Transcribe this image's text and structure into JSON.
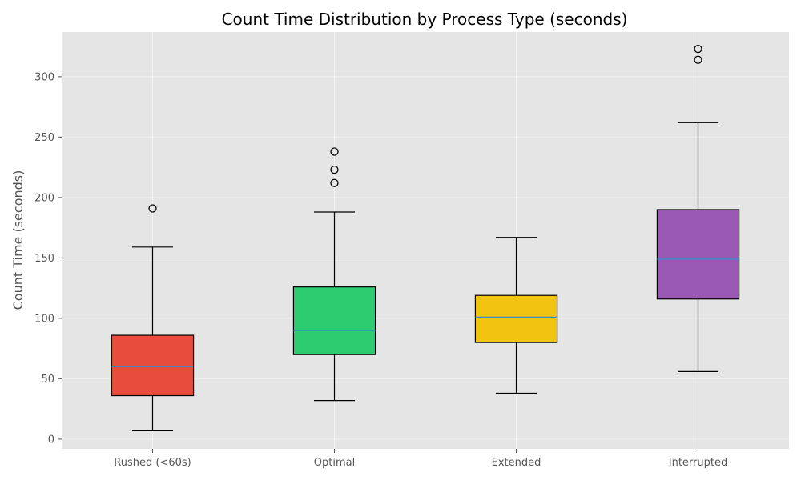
{
  "chart_data": {
    "type": "boxplot",
    "title": "Count Time Distribution by Process Type (seconds)",
    "xlabel": "",
    "ylabel": "Count Time (seconds)",
    "ylim": [
      -8,
      337
    ],
    "yticks": [
      0,
      50,
      100,
      150,
      200,
      250,
      300
    ],
    "grid": true,
    "categories": [
      "Rushed (<60s)",
      "Optimal",
      "Extended",
      "Interrupted"
    ],
    "boxes": [
      {
        "category": "Rushed (<60s)",
        "whisker_low": 7,
        "q1": 36,
        "median": 60,
        "q3": 86,
        "whisker_high": 159,
        "outliers": [
          191
        ],
        "color": "#e74c3c"
      },
      {
        "category": "Optimal",
        "whisker_low": 32,
        "q1": 70,
        "median": 90,
        "q3": 126,
        "whisker_high": 188,
        "outliers": [
          212,
          223,
          238
        ],
        "color": "#2ecc71"
      },
      {
        "category": "Extended",
        "whisker_low": 38,
        "q1": 80,
        "median": 101,
        "q3": 119,
        "whisker_high": 167,
        "outliers": [],
        "color": "#f1c40f"
      },
      {
        "category": "Interrupted",
        "whisker_low": 56,
        "q1": 116,
        "median": 149,
        "q3": 190,
        "whisker_high": 262,
        "outliers": [
          314,
          323
        ],
        "color": "#9b59b6"
      }
    ],
    "colors": {
      "plot_background": "#e5e5e5",
      "grid": "#f2f2f2",
      "median_line": "#3a8dcc",
      "box_edge": "#000000"
    }
  }
}
